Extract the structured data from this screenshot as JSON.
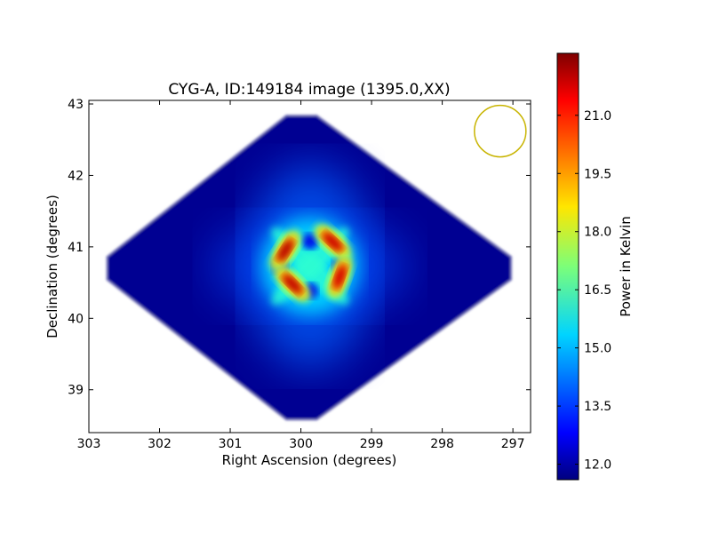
{
  "chart_data": {
    "type": "heatmap",
    "title": "CYG-A, ID:149184 image (1395.0,XX)",
    "xlabel": "Right Ascension (degrees)",
    "ylabel": "Declination (degrees)",
    "xlim": [
      303,
      296.75
    ],
    "ylim": [
      38.4,
      43.05
    ],
    "xticks": [
      303,
      302,
      301,
      300,
      299,
      298,
      297
    ],
    "yticks": [
      39,
      40,
      41,
      42,
      43
    ],
    "colorbar": {
      "label": "Power in Kelvin",
      "colormap": "jet",
      "range": [
        11.6,
        22.6
      ],
      "ticks": [
        "12.0",
        "13.5",
        "15.0",
        "16.5",
        "18.0",
        "19.5",
        "21.0"
      ]
    },
    "footprint": {
      "shape": "diamond",
      "center": [
        300.0,
        40.7
      ],
      "ra_extent": [
        302.95,
        296.8
      ],
      "dec_extent": [
        38.42,
        43.0
      ],
      "background_level": 11.8
    },
    "source": {
      "name": "CYG-A",
      "center": [
        299.87,
        40.73
      ],
      "peak_level": 22.2,
      "lobes": [
        {
          "ra": 300.22,
          "dec": 40.95,
          "level": 22.0
        },
        {
          "ra": 299.55,
          "dec": 41.07,
          "level": 21.8
        },
        {
          "ra": 300.12,
          "dec": 40.48,
          "level": 21.9
        },
        {
          "ra": 299.45,
          "dec": 40.58,
          "level": 21.7
        }
      ]
    },
    "beam": {
      "ra": 297.18,
      "dec": 42.62,
      "color": "#c8b400"
    }
  }
}
